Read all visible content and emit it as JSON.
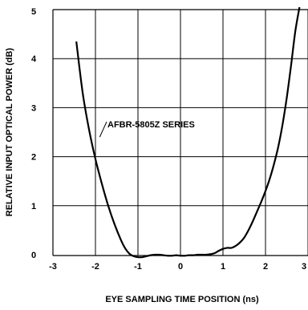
{
  "chart_data": {
    "type": "line",
    "title": "",
    "xlabel": "EYE SAMPLING TIME POSITION (ns)",
    "ylabel": "RELATIVE INPUT OPTICAL POWER (dB)",
    "xlim": [
      -3,
      3
    ],
    "ylim": [
      0,
      5
    ],
    "grid": true,
    "x_ticks": [
      "-3",
      "-2",
      "-1",
      "0",
      "1",
      "2",
      "3"
    ],
    "y_ticks": [
      "0",
      "1",
      "2",
      "3",
      "4",
      "5"
    ],
    "annotation": "AFBR-5805Z SERIES",
    "series": [
      {
        "name": "AFBR-5805Z SERIES",
        "x": [
          -2.45,
          -2.3,
          -2.15,
          -2.0,
          -1.85,
          -1.7,
          -1.55,
          -1.4,
          -1.3,
          -1.2,
          -1.1,
          -1.0,
          -0.9,
          -0.8,
          -0.7,
          -0.6,
          -0.5,
          -0.4,
          -0.3,
          -0.2,
          -0.1,
          0.0,
          0.1,
          0.2,
          0.3,
          0.4,
          0.5,
          0.6,
          0.7,
          0.8,
          0.9,
          1.0,
          1.1,
          1.2,
          1.3,
          1.4,
          1.5,
          1.6,
          1.7,
          1.8,
          1.9,
          2.0,
          2.1,
          2.2,
          2.3,
          2.4,
          2.5,
          2.6,
          2.7,
          2.8
        ],
        "y": [
          4.35,
          3.3,
          2.55,
          1.95,
          1.45,
          1.0,
          0.62,
          0.3,
          0.13,
          0.02,
          -0.03,
          -0.05,
          -0.05,
          -0.03,
          -0.01,
          0.0,
          0.0,
          -0.01,
          -0.02,
          -0.02,
          -0.01,
          -0.02,
          -0.02,
          -0.01,
          -0.01,
          0.0,
          0.0,
          0.0,
          0.01,
          0.03,
          0.08,
          0.12,
          0.14,
          0.14,
          0.18,
          0.25,
          0.35,
          0.5,
          0.68,
          0.88,
          1.08,
          1.3,
          1.55,
          1.85,
          2.2,
          2.65,
          3.2,
          3.85,
          4.55,
          5.05
        ]
      }
    ]
  }
}
